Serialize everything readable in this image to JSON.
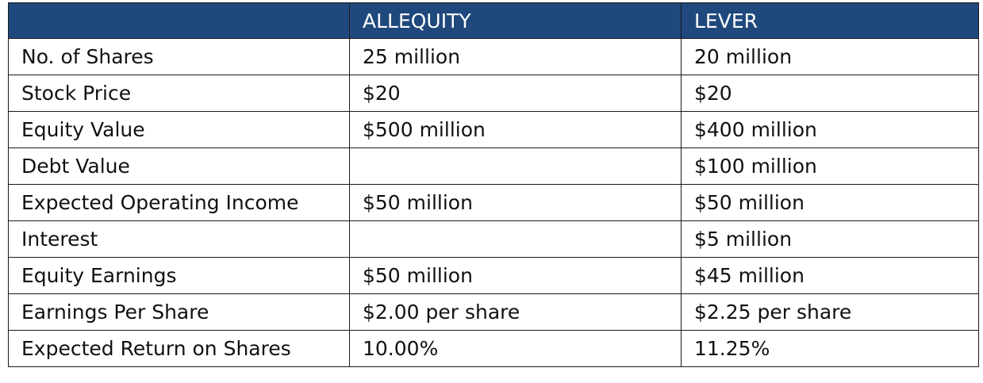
{
  "header": {
    "col_label": "",
    "col_a": "ALLEQUITY",
    "col_b": "LEVER"
  },
  "rows": [
    {
      "label": "No. of Shares",
      "a": "25 million",
      "b": "20 million"
    },
    {
      "label": "Stock Price",
      "a": "$20",
      "b": "$20"
    },
    {
      "label": "Equity Value",
      "a": "$500 million",
      "b": "$400 million"
    },
    {
      "label": "Debt Value",
      "a": "",
      "b": "$100 million"
    },
    {
      "label": "Expected Operating Income",
      "a": "$50 million",
      "b": "$50 million"
    },
    {
      "label": "Interest",
      "a": "",
      "b": "$5 million"
    },
    {
      "label": "Equity Earnings",
      "a": "$50 million",
      "b": "$45 million"
    },
    {
      "label": "Earnings Per Share",
      "a": "$2.00 per share",
      "b": "$2.25 per share"
    },
    {
      "label": "Expected Return on Shares",
      "a": "10.00%",
      "b": "11.25%"
    }
  ],
  "colors": {
    "header_bg": "#1f497d",
    "header_text": "#ffffff",
    "border": "#1a1a1a"
  }
}
